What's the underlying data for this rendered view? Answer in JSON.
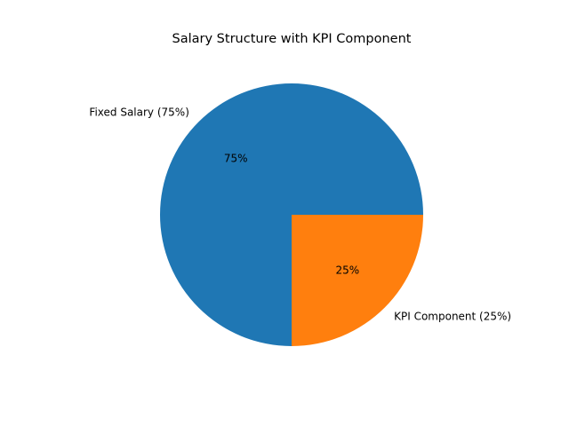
{
  "chart_data": {
    "type": "pie",
    "title": "Salary Structure with KPI Component",
    "categories": [
      "Fixed Salary (75%)",
      "KPI Component (25%)"
    ],
    "values": [
      75,
      25
    ],
    "value_labels": [
      "75%",
      "25%"
    ],
    "colors": [
      "#1f77b4",
      "#ff7f0e"
    ]
  }
}
